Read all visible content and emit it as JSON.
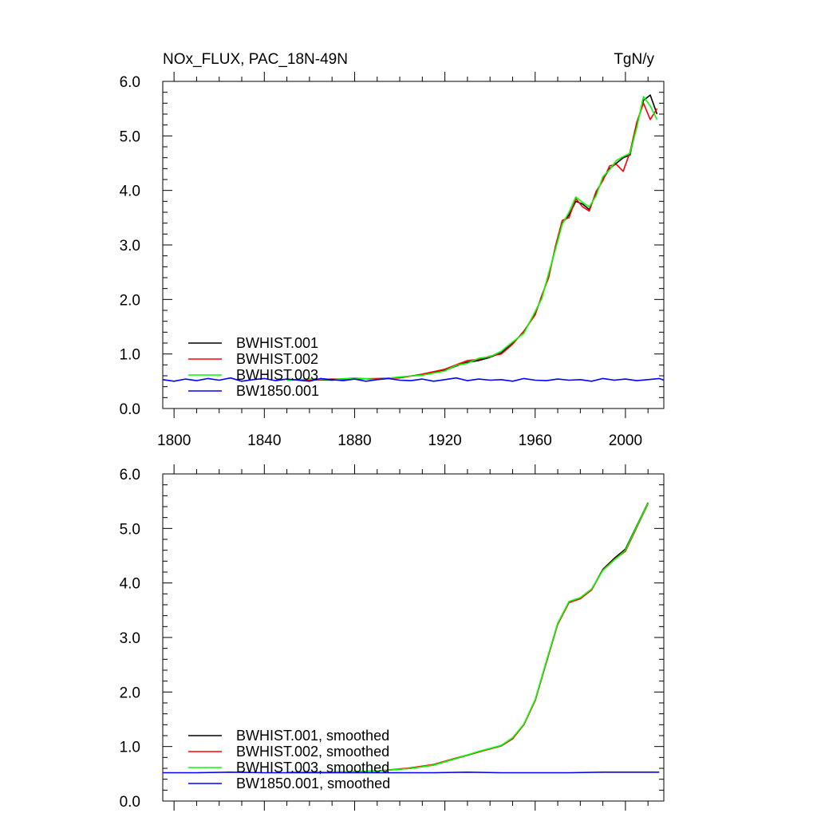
{
  "figure": {
    "title_left": "NOx_FLUX, PAC_18N-49N",
    "title_right": "TgN/y"
  },
  "chart_data": [
    {
      "type": "line",
      "title": "NOx_FLUX, PAC_18N-49N",
      "units": "TgN/y",
      "xlim": [
        1795,
        2017
      ],
      "ylim": [
        0.0,
        6.0
      ],
      "xticks": [
        1800,
        1840,
        1880,
        1920,
        1960,
        2000
      ],
      "yticks": [
        0.0,
        1.0,
        2.0,
        3.0,
        4.0,
        5.0,
        6.0
      ],
      "ytick_labels": [
        "0.0",
        "1.0",
        "2.0",
        "3.0",
        "4.0",
        "5.0",
        "6.0"
      ],
      "show_xtick_labels": true,
      "legend_position": "lower-left",
      "series": [
        {
          "name": "BWHIST.001",
          "color": "#000000",
          "x": [
            1850,
            1860,
            1870,
            1880,
            1890,
            1900,
            1910,
            1920,
            1925,
            1930,
            1935,
            1940,
            1945,
            1950,
            1955,
            1960,
            1963,
            1966,
            1969,
            1972,
            1975,
            1978,
            1981,
            1984,
            1987,
            1990,
            1993,
            1996,
            1999,
            2002,
            2005,
            2008,
            2011,
            2014
          ],
          "values": [
            0.52,
            0.53,
            0.52,
            0.55,
            0.54,
            0.57,
            0.62,
            0.7,
            0.78,
            0.85,
            0.88,
            0.94,
            1.02,
            1.2,
            1.4,
            1.75,
            2.05,
            2.45,
            2.95,
            3.4,
            3.55,
            3.8,
            3.75,
            3.65,
            3.95,
            4.2,
            4.4,
            4.5,
            4.6,
            4.65,
            5.2,
            5.65,
            5.75,
            5.4
          ]
        },
        {
          "name": "BWHIST.002",
          "color": "#ff0000",
          "x": [
            1850,
            1860,
            1870,
            1880,
            1890,
            1900,
            1910,
            1920,
            1925,
            1930,
            1935,
            1940,
            1945,
            1950,
            1955,
            1960,
            1963,
            1966,
            1969,
            1972,
            1975,
            1978,
            1981,
            1984,
            1987,
            1990,
            1993,
            1996,
            1999,
            2002,
            2005,
            2008,
            2011,
            2014
          ],
          "values": [
            0.53,
            0.52,
            0.54,
            0.54,
            0.55,
            0.56,
            0.63,
            0.72,
            0.8,
            0.88,
            0.9,
            0.96,
            1.0,
            1.18,
            1.42,
            1.72,
            2.08,
            2.4,
            2.98,
            3.45,
            3.5,
            3.85,
            3.7,
            3.62,
            3.98,
            4.18,
            4.45,
            4.48,
            4.35,
            4.7,
            5.25,
            5.6,
            5.3,
            5.5
          ]
        },
        {
          "name": "BWHIST.003",
          "color": "#00ff00",
          "x": [
            1850,
            1860,
            1870,
            1880,
            1890,
            1900,
            1910,
            1920,
            1925,
            1930,
            1935,
            1940,
            1945,
            1950,
            1955,
            1960,
            1963,
            1966,
            1969,
            1972,
            1975,
            1978,
            1981,
            1984,
            1987,
            1990,
            1993,
            1996,
            1999,
            2002,
            2005,
            2008,
            2011,
            2014
          ],
          "values": [
            0.52,
            0.54,
            0.53,
            0.56,
            0.53,
            0.58,
            0.61,
            0.69,
            0.79,
            0.83,
            0.92,
            0.95,
            1.05,
            1.22,
            1.38,
            1.78,
            2.02,
            2.48,
            2.92,
            3.38,
            3.6,
            3.88,
            3.78,
            3.7,
            3.9,
            4.25,
            4.38,
            4.55,
            4.62,
            4.68,
            5.15,
            5.72,
            5.55,
            5.3
          ]
        },
        {
          "name": "BW1850.001",
          "color": "#0000ff",
          "x": [
            1795,
            1800,
            1805,
            1810,
            1815,
            1820,
            1825,
            1830,
            1835,
            1840,
            1845,
            1850,
            1855,
            1860,
            1865,
            1870,
            1875,
            1880,
            1885,
            1890,
            1895,
            1900,
            1905,
            1910,
            1915,
            1920,
            1925,
            1930,
            1935,
            1940,
            1945,
            1950,
            1955,
            1960,
            1965,
            1970,
            1975,
            1980,
            1985,
            1990,
            1995,
            2000,
            2005,
            2010,
            2015,
            2017
          ],
          "values": [
            0.53,
            0.5,
            0.54,
            0.51,
            0.55,
            0.52,
            0.56,
            0.5,
            0.53,
            0.55,
            0.51,
            0.54,
            0.52,
            0.5,
            0.55,
            0.53,
            0.51,
            0.54,
            0.5,
            0.53,
            0.55,
            0.52,
            0.51,
            0.54,
            0.5,
            0.53,
            0.56,
            0.51,
            0.54,
            0.52,
            0.53,
            0.5,
            0.55,
            0.52,
            0.51,
            0.54,
            0.52,
            0.53,
            0.5,
            0.55,
            0.52,
            0.54,
            0.51,
            0.53,
            0.55,
            0.52
          ]
        }
      ]
    },
    {
      "type": "line",
      "title": "",
      "xlim": [
        1795,
        2017
      ],
      "ylim": [
        0.0,
        6.0
      ],
      "xticks": [
        1800,
        1840,
        1880,
        1920,
        1960,
        2000
      ],
      "yticks": [
        0.0,
        1.0,
        2.0,
        3.0,
        4.0,
        5.0,
        6.0
      ],
      "ytick_labels": [
        "0.0",
        "1.0",
        "2.0",
        "3.0",
        "4.0",
        "5.0",
        "6.0"
      ],
      "show_xtick_labels": false,
      "legend_position": "lower-left",
      "series": [
        {
          "name": "BWHIST.001, smoothed",
          "color": "#000000",
          "x": [
            1850,
            1870,
            1890,
            1905,
            1915,
            1925,
            1935,
            1945,
            1950,
            1955,
            1960,
            1965,
            1970,
            1975,
            1980,
            1985,
            1990,
            1995,
            2000,
            2005,
            2010
          ],
          "values": [
            0.53,
            0.53,
            0.55,
            0.6,
            0.66,
            0.78,
            0.9,
            1.02,
            1.15,
            1.4,
            1.85,
            2.55,
            3.25,
            3.65,
            3.72,
            3.88,
            4.25,
            4.45,
            4.62,
            5.05,
            5.47
          ]
        },
        {
          "name": "BWHIST.002, smoothed",
          "color": "#ff0000",
          "x": [
            1850,
            1870,
            1890,
            1905,
            1915,
            1925,
            1935,
            1945,
            1950,
            1955,
            1960,
            1965,
            1970,
            1975,
            1980,
            1985,
            1990,
            1995,
            2000,
            2005,
            2010
          ],
          "values": [
            0.53,
            0.53,
            0.55,
            0.61,
            0.67,
            0.79,
            0.9,
            1.01,
            1.14,
            1.4,
            1.84,
            2.55,
            3.24,
            3.64,
            3.71,
            3.87,
            4.24,
            4.43,
            4.58,
            5.02,
            5.45
          ]
        },
        {
          "name": "BWHIST.003, smoothed",
          "color": "#00ff00",
          "x": [
            1850,
            1870,
            1890,
            1905,
            1915,
            1925,
            1935,
            1945,
            1950,
            1955,
            1960,
            1965,
            1970,
            1975,
            1980,
            1985,
            1990,
            1995,
            2000,
            2005,
            2010
          ],
          "values": [
            0.53,
            0.53,
            0.55,
            0.6,
            0.66,
            0.78,
            0.91,
            1.02,
            1.16,
            1.41,
            1.86,
            2.57,
            3.26,
            3.66,
            3.73,
            3.89,
            4.23,
            4.42,
            4.6,
            5.04,
            5.46
          ]
        },
        {
          "name": "BW1850.001, smoothed",
          "color": "#0000ff",
          "x": [
            1795,
            1810,
            1825,
            1840,
            1855,
            1870,
            1885,
            1900,
            1915,
            1930,
            1945,
            1960,
            1975,
            1990,
            2005,
            2015
          ],
          "values": [
            0.52,
            0.52,
            0.53,
            0.52,
            0.52,
            0.52,
            0.52,
            0.52,
            0.52,
            0.53,
            0.52,
            0.52,
            0.52,
            0.53,
            0.53,
            0.53
          ]
        }
      ]
    }
  ]
}
